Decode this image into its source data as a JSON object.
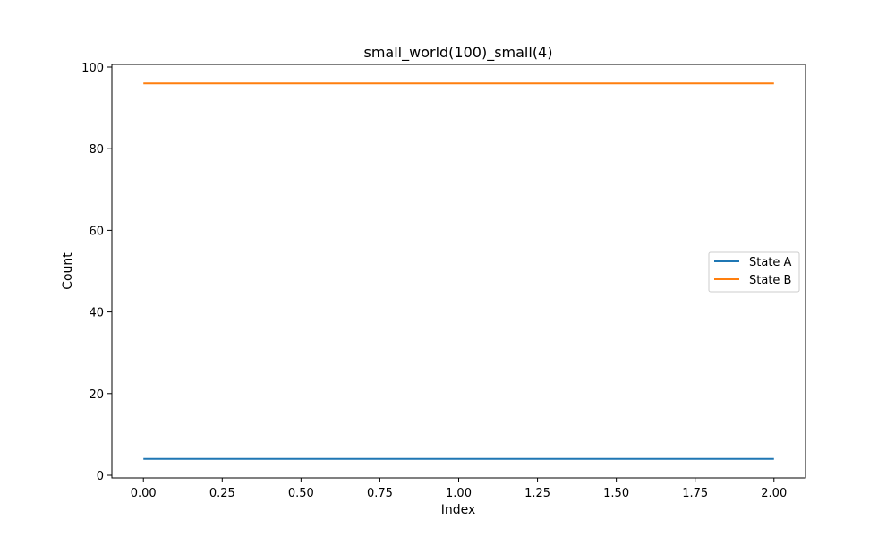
{
  "chart_data": {
    "type": "line",
    "title": "small_world(100)_small(4)",
    "xlabel": "Index",
    "ylabel": "Count",
    "x": [
      0,
      1,
      2
    ],
    "xlim": [
      -0.1,
      2.1
    ],
    "ylim": [
      0,
      100
    ],
    "xticks": [
      0,
      0.25,
      0.5,
      0.75,
      1.0,
      1.25,
      1.5,
      1.75,
      2.0
    ],
    "xtick_labels": [
      "0.00",
      "0.25",
      "0.50",
      "0.75",
      "1.00",
      "1.25",
      "1.50",
      "1.75",
      "2.00"
    ],
    "yticks": [
      0,
      20,
      40,
      60,
      80,
      100
    ],
    "ytick_labels": [
      "0",
      "20",
      "40",
      "60",
      "80",
      "100"
    ],
    "grid": false,
    "legend_position": "center-right",
    "series": [
      {
        "name": "State A",
        "color": "#1f77b4",
        "values": [
          4,
          4,
          4
        ]
      },
      {
        "name": "State B",
        "color": "#ff7f0e",
        "values": [
          96,
          96,
          96
        ]
      }
    ]
  }
}
